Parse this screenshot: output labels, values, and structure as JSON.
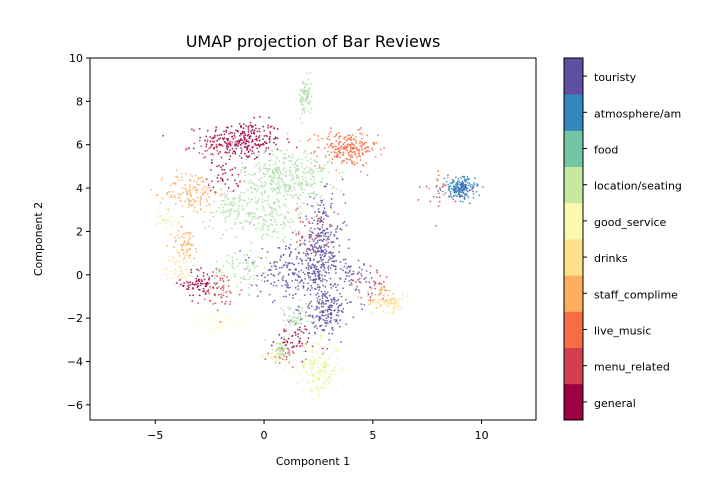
{
  "chart_data": {
    "type": "scatter",
    "title": "UMAP projection of Bar Reviews",
    "xlabel": "Component 1",
    "ylabel": "Component 2",
    "xlim": [
      -8,
      12.5
    ],
    "ylim": [
      -6.7,
      10
    ],
    "xticks": [
      -5,
      0,
      5,
      10
    ],
    "xtick_labels": [
      "−5",
      "0",
      "5",
      "10"
    ],
    "yticks": [
      -6,
      -4,
      -2,
      0,
      2,
      4,
      6,
      8,
      10
    ],
    "ytick_labels": [
      "−6",
      "−4",
      "−2",
      "0",
      "2",
      "4",
      "6",
      "8",
      "10"
    ],
    "grid": false,
    "legend": "colorbar-right",
    "colorbar": {
      "colormap": "Spectral",
      "categories": [
        {
          "label": "general",
          "color": "#9e0142"
        },
        {
          "label": "menu_related",
          "color": "#d53e4f"
        },
        {
          "label": "live_music",
          "color": "#f46d43"
        },
        {
          "label": "staff_complime",
          "color": "#fdae61"
        },
        {
          "label": "drinks",
          "color": "#fee08b"
        },
        {
          "label": "good_service",
          "color": "#ffffbf"
        },
        {
          "label": "location/seating",
          "color": "#e6f598"
        },
        {
          "label": "food",
          "color": "#abdda4"
        },
        {
          "label": "atmosphere/am",
          "color": "#3288bd"
        },
        {
          "label": "touristy",
          "color": "#5e4fa2"
        }
      ],
      "bar_colors": [
        "#9e0142",
        "#d53e4f",
        "#f46d43",
        "#fdae61",
        "#fee08b",
        "#fbf8b0",
        "#c7e89e",
        "#73c6a5",
        "#3288bd",
        "#5e4fa2"
      ]
    },
    "clusters": [
      {
        "category": "general",
        "cx": -1.0,
        "cy": 6.2,
        "sx": 0.9,
        "sy": 0.45,
        "n": 260
      },
      {
        "category": "general",
        "cx": -3.0,
        "cy": -0.4,
        "sx": 0.4,
        "sy": 0.35,
        "n": 70
      },
      {
        "category": "general",
        "cx": -1.8,
        "cy": 4.6,
        "sx": 0.4,
        "sy": 0.4,
        "n": 40
      },
      {
        "category": "general",
        "cx": 1.3,
        "cy": -3.0,
        "sx": 0.5,
        "sy": 0.35,
        "n": 50
      },
      {
        "category": "menu_related",
        "cx": -2.2,
        "cy": 5.9,
        "sx": 0.6,
        "sy": 0.2,
        "n": 40
      },
      {
        "category": "menu_related",
        "cx": -2.0,
        "cy": -0.8,
        "sx": 0.5,
        "sy": 0.5,
        "n": 60
      },
      {
        "category": "menu_related",
        "cx": 2.2,
        "cy": 2.0,
        "sx": 0.4,
        "sy": 0.6,
        "n": 45
      },
      {
        "category": "menu_related",
        "cx": 4.8,
        "cy": -0.4,
        "sx": 0.5,
        "sy": 0.4,
        "n": 30
      },
      {
        "category": "menu_related",
        "cx": 1.2,
        "cy": -3.6,
        "sx": 0.5,
        "sy": 0.3,
        "n": 30
      },
      {
        "category": "menu_related",
        "cx": 8.1,
        "cy": 3.8,
        "sx": 0.4,
        "sy": 0.4,
        "n": 20
      },
      {
        "category": "live_music",
        "cx": 3.8,
        "cy": 5.8,
        "sx": 0.7,
        "sy": 0.4,
        "n": 220
      },
      {
        "category": "live_music",
        "cx": 8.0,
        "cy": 4.3,
        "sx": 0.2,
        "sy": 0.3,
        "n": 10
      },
      {
        "category": "staff_complime",
        "cx": -3.3,
        "cy": 3.8,
        "sx": 0.6,
        "sy": 0.5,
        "n": 140
      },
      {
        "category": "staff_complime",
        "cx": -3.6,
        "cy": 1.4,
        "sx": 0.35,
        "sy": 0.4,
        "n": 60
      },
      {
        "category": "staff_complime",
        "cx": 5.4,
        "cy": -1.0,
        "sx": 0.4,
        "sy": 0.25,
        "n": 40
      },
      {
        "category": "drinks",
        "cx": -3.9,
        "cy": 0.5,
        "sx": 0.35,
        "sy": 0.5,
        "n": 50
      },
      {
        "category": "drinks",
        "cx": 5.8,
        "cy": -1.3,
        "sx": 0.4,
        "sy": 0.2,
        "n": 60
      },
      {
        "category": "good_service",
        "cx": -2.0,
        "cy": -2.2,
        "sx": 0.6,
        "sy": 0.3,
        "n": 80
      },
      {
        "category": "location/seating",
        "cx": 2.5,
        "cy": -4.3,
        "sx": 0.5,
        "sy": 0.6,
        "n": 160
      },
      {
        "category": "location/seating",
        "cx": 0.6,
        "cy": -3.8,
        "sx": 0.3,
        "sy": 0.25,
        "n": 40
      },
      {
        "category": "location/seating",
        "cx": -4.4,
        "cy": 2.6,
        "sx": 0.3,
        "sy": 0.2,
        "n": 30
      },
      {
        "category": "food",
        "cx": 1.9,
        "cy": 8.2,
        "sx": 0.15,
        "sy": 0.45,
        "n": 80
      },
      {
        "category": "food",
        "cx": 1.0,
        "cy": 4.5,
        "sx": 1.0,
        "sy": 0.7,
        "n": 400
      },
      {
        "category": "food",
        "cx": -1.5,
        "cy": 3.0,
        "sx": 0.7,
        "sy": 0.5,
        "n": 100
      },
      {
        "category": "food",
        "cx": 0.3,
        "cy": 2.6,
        "sx": 0.6,
        "sy": 0.5,
        "n": 110
      },
      {
        "category": "food",
        "cx": -1.0,
        "cy": 0.2,
        "sx": 0.7,
        "sy": 0.5,
        "n": 90
      },
      {
        "category": "food",
        "cx": 1.4,
        "cy": -2.0,
        "sx": 0.4,
        "sy": 0.3,
        "n": 60
      },
      {
        "category": "food",
        "cx": 0.8,
        "cy": -3.5,
        "sx": 0.35,
        "sy": 0.3,
        "n": 40
      },
      {
        "category": "atmosphere/am",
        "cx": 9.0,
        "cy": 4.0,
        "sx": 0.35,
        "sy": 0.25,
        "n": 170
      },
      {
        "category": "touristy",
        "cx": 2.7,
        "cy": 1.0,
        "sx": 0.5,
        "sy": 1.2,
        "n": 320
      },
      {
        "category": "touristy",
        "cx": 1.3,
        "cy": 0.1,
        "sx": 0.8,
        "sy": 0.6,
        "n": 180
      },
      {
        "category": "touristy",
        "cx": 2.8,
        "cy": -1.7,
        "sx": 0.5,
        "sy": 0.5,
        "n": 160
      },
      {
        "category": "touristy",
        "cx": 4.2,
        "cy": -0.2,
        "sx": 0.4,
        "sy": 0.5,
        "n": 60
      },
      {
        "category": "touristy",
        "cx": 9.2,
        "cy": 4.0,
        "sx": 0.25,
        "sy": 0.2,
        "n": 25
      }
    ]
  }
}
